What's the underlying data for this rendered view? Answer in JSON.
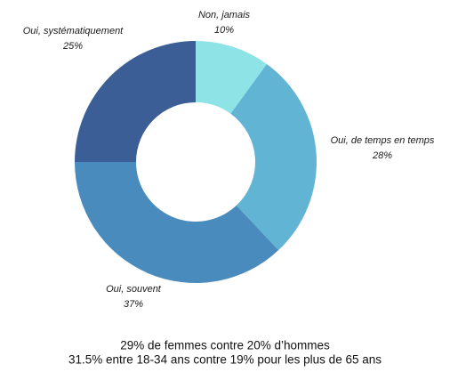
{
  "chart_data": {
    "type": "donut",
    "categories": [
      "Non, jamais",
      "Oui, de temps en temps",
      "Oui, souvent",
      "Oui, systématiquement"
    ],
    "values": [
      10,
      28,
      37,
      25
    ],
    "value_labels": [
      "10%",
      "28%",
      "37%",
      "25%"
    ],
    "colors": [
      "#8de3e6",
      "#62b4d4",
      "#4a8bbd",
      "#3b5e96"
    ],
    "annotations": [
      "29% de femmes contre 20% d’hommes",
      "31.5% entre 18-34 ans contre 19% pour les plus de 65 ans"
    ]
  }
}
